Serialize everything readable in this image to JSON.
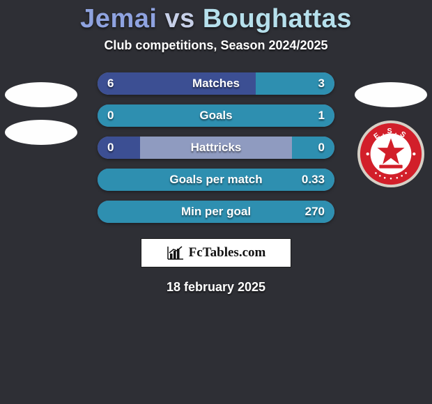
{
  "background_color": "#2e2f35",
  "title": {
    "player1": "Jemai",
    "vs": "vs",
    "player2": "Boughattas",
    "color_p1": "#8fa3e0",
    "color_vs": "#c7d0e8",
    "color_p2": "#b6e0ec"
  },
  "subtitle": "Club competitions, Season 2024/2025",
  "row_style": {
    "track_color": "#8f9bc0",
    "fill_color_left": "#3c4f93",
    "fill_color_right": "#2e8fb0",
    "height": 32,
    "radius": 16
  },
  "rows": [
    {
      "label": "Matches",
      "left": "6",
      "right": "3",
      "left_pct": 66.7,
      "right_pct": 33.3
    },
    {
      "label": "Goals",
      "left": "0",
      "right": "1",
      "left_pct": 18,
      "right_pct": 100
    },
    {
      "label": "Hattricks",
      "left": "0",
      "right": "0",
      "left_pct": 18,
      "right_pct": 18
    },
    {
      "label": "Goals per match",
      "left": "",
      "right": "0.33",
      "left_pct": 18,
      "right_pct": 100
    },
    {
      "label": "Min per goal",
      "left": "",
      "right": "270",
      "left_pct": 18,
      "right_pct": 100
    }
  ],
  "brand": "FcTables.com",
  "date": "18 february 2025",
  "club_badge": {
    "outer": "#d6d0c6",
    "ring": "#d21f2a",
    "ring_text_color": "#ffffff",
    "inner_bg": "#ffffff",
    "star_color": "#d21f2a",
    "top_text": "E.S.S"
  }
}
